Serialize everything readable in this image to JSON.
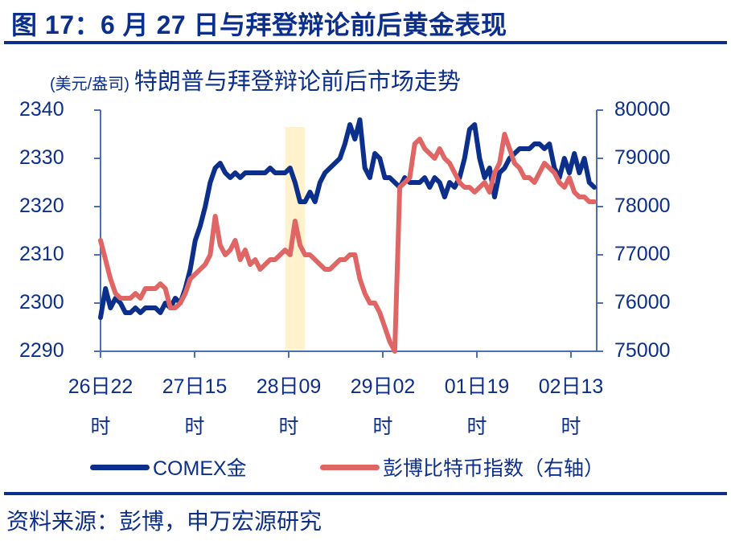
{
  "figure": {
    "title": "图 17：6 月 27 日与拜登辩论前后黄金表现",
    "subtitle_unit": "(美元/盎司)",
    "subtitle": "特朗普与拜登辩论前后市场走势",
    "source": "资料来源：彭博，申万宏源研究"
  },
  "colors": {
    "gold_line": "#0b2f8a",
    "btc_line": "#e06666",
    "highlight": "#fff2cc",
    "axis": "#4a6fb5",
    "text": "#0b2f8a"
  },
  "legend": [
    {
      "label": "COMEX金",
      "color": "#0b2f8a"
    },
    {
      "label": "彭博比特币指数（右轴）",
      "color": "#e06666"
    }
  ],
  "chart_data": {
    "type": "line",
    "title": "特朗普与拜登辩论前后市场走势",
    "ylabel": "(美元/盎司)",
    "y2label": "",
    "xlabel": "",
    "ylim": [
      2290,
      2340
    ],
    "y2lim": [
      75000,
      80000
    ],
    "yticks": [
      2340,
      2330,
      2320,
      2310,
      2300,
      2290
    ],
    "y2ticks": [
      80000,
      79000,
      78000,
      77000,
      76000,
      75000
    ],
    "xticks": [
      {
        "label": "26日22",
        "sub": "时"
      },
      {
        "label": "27日15",
        "sub": "时"
      },
      {
        "label": "28日09",
        "sub": "时"
      },
      {
        "label": "29日02",
        "sub": "时"
      },
      {
        "label": "01日19",
        "sub": "时"
      },
      {
        "label": "02日13",
        "sub": "时"
      }
    ],
    "highlight_band": {
      "from_index": 37,
      "to_index": 41,
      "note": "debate window ~28日09时"
    },
    "grid": false,
    "legend_position": "bottom",
    "x": [
      0,
      1,
      2,
      3,
      4,
      5,
      6,
      7,
      8,
      9,
      10,
      11,
      12,
      13,
      14,
      15,
      16,
      17,
      18,
      19,
      20,
      21,
      22,
      23,
      24,
      25,
      26,
      27,
      28,
      29,
      30,
      31,
      32,
      33,
      34,
      35,
      36,
      37,
      38,
      39,
      40,
      41,
      42,
      43,
      44,
      45,
      46,
      47,
      48,
      49,
      50,
      51,
      52,
      53,
      54,
      55,
      56,
      57,
      58,
      59,
      60,
      61,
      62,
      63,
      64,
      65,
      66,
      67,
      68,
      69,
      70,
      71,
      72,
      73,
      74,
      75,
      76,
      77,
      78,
      79,
      80,
      81,
      82,
      83,
      84,
      85,
      86,
      87,
      88,
      89,
      90,
      91,
      92,
      93,
      94,
      95,
      96,
      97,
      98,
      99
    ],
    "series": [
      {
        "name": "COMEX金",
        "axis": "left",
        "values": [
          2297,
          2303,
          2299,
          2301,
          2300,
          2298,
          2298,
          2299,
          2298,
          2299,
          2299,
          2299,
          2298,
          2300,
          2299,
          2301,
          2300,
          2303,
          2307,
          2313,
          2316,
          2320,
          2325,
          2328,
          2329,
          2327,
          2326,
          2327,
          2326,
          2327,
          2327,
          2327,
          2327,
          2327,
          2328,
          2327,
          2327,
          2327,
          2328,
          2325,
          2321,
          2321,
          2323,
          2321,
          2325,
          2327,
          2328,
          2329,
          2330,
          2333,
          2337,
          2334,
          2338,
          2328,
          2326,
          2331,
          2330,
          2326,
          2326,
          2325,
          2324,
          2326,
          2325,
          2325,
          2325,
          2326,
          2324,
          2326,
          2325,
          2322,
          2325,
          2324,
          2326,
          2330,
          2336,
          2337,
          2330,
          2326,
          2328,
          2322,
          2327,
          2328,
          2330,
          2331,
          2332,
          2332,
          2332,
          2333,
          2333,
          2332,
          2333,
          2328,
          2326,
          2330,
          2327,
          2331,
          2327,
          2330,
          2325,
          2324
        ]
      },
      {
        "name": "彭博比特币指数（右轴）",
        "axis": "right",
        "values": [
          77300,
          76900,
          76500,
          76200,
          76100,
          76100,
          76100,
          76200,
          76100,
          76300,
          76300,
          76300,
          76400,
          76300,
          75900,
          75900,
          76000,
          76200,
          76500,
          76600,
          76700,
          76800,
          77000,
          77800,
          77200,
          77000,
          77100,
          77300,
          76900,
          77100,
          76800,
          76900,
          76700,
          76800,
          76900,
          76900,
          77000,
          77100,
          77000,
          77700,
          77200,
          77000,
          77000,
          76900,
          76800,
          76700,
          76700,
          76800,
          76900,
          76900,
          77000,
          77000,
          76500,
          76200,
          76000,
          76000,
          75800,
          75500,
          75200,
          75000,
          78400,
          78500,
          78600,
          79300,
          79400,
          79200,
          79100,
          79000,
          79200,
          79000,
          78900,
          78700,
          78500,
          78400,
          78400,
          78300,
          78400,
          78500,
          78300,
          78700,
          78900,
          79500,
          79200,
          78900,
          78800,
          78600,
          78600,
          78500,
          78700,
          78900,
          78800,
          78700,
          78500,
          78400,
          78600,
          78300,
          78200,
          78200,
          78100,
          78100
        ]
      }
    ]
  }
}
